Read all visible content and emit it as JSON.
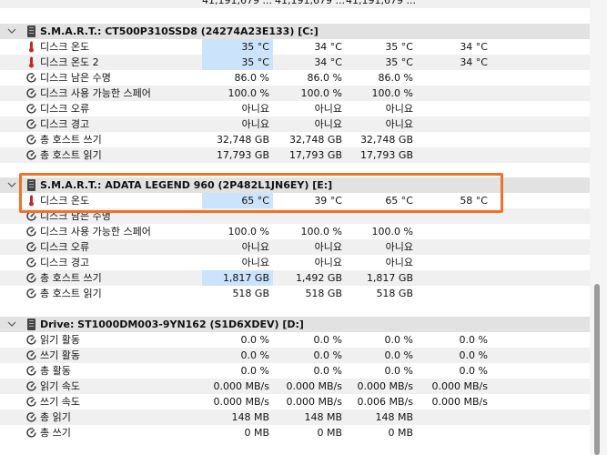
{
  "top_row": {
    "c1": "41,191,679 ...",
    "c2": "41,191,679 ...",
    "c3": "41,191,679 ..."
  },
  "groups": [
    {
      "title": "S.M.A.R.T.: CT500P310SSD8 (24274A23E133) [C:]",
      "rows": [
        {
          "icon": "thermometer-icon",
          "label": "디스크 온도",
          "v": [
            "35 °C",
            "34 °C",
            "35 °C",
            "34 °C"
          ],
          "hl": true
        },
        {
          "icon": "thermometer-icon",
          "label": "디스크 온도 2",
          "v": [
            "35 °C",
            "34 °C",
            "35 °C",
            "34 °C"
          ],
          "hl": true
        },
        {
          "icon": "gauge-icon",
          "label": "디스크 남은 수명",
          "v": [
            "86.0 %",
            "86.0 %",
            "86.0 %",
            ""
          ]
        },
        {
          "icon": "gauge-icon",
          "label": "디스크 사용 가능한 스페어",
          "v": [
            "100.0 %",
            "100.0 %",
            "100.0 %",
            ""
          ]
        },
        {
          "icon": "gauge-icon",
          "label": "디스크 오류",
          "v": [
            "아니요",
            "아니요",
            "아니요",
            ""
          ]
        },
        {
          "icon": "gauge-icon",
          "label": "디스크 경고",
          "v": [
            "아니요",
            "아니요",
            "아니요",
            ""
          ]
        },
        {
          "icon": "gauge-icon",
          "label": "총 호스트 쓰기",
          "v": [
            "32,748 GB",
            "32,748 GB",
            "32,748 GB",
            ""
          ]
        },
        {
          "icon": "gauge-icon",
          "label": "총 호스트 읽기",
          "v": [
            "17,793 GB",
            "17,793 GB",
            "17,793 GB",
            ""
          ]
        }
      ]
    },
    {
      "title": "S.M.A.R.T.: ADATA LEGEND 960 (2P482L1JN6EY) [E:]",
      "rows": [
        {
          "icon": "thermometer-icon",
          "label": "디스크 온도",
          "v": [
            "65 °C",
            "39 °C",
            "65 °C",
            "58 °C"
          ],
          "hl": true
        },
        {
          "icon": "gauge-icon",
          "label": "디스크 남은 수명",
          "v": [
            "",
            "",
            "",
            ""
          ]
        },
        {
          "icon": "gauge-icon",
          "label": "디스크 사용 가능한 스페어",
          "v": [
            "100.0 %",
            "100.0 %",
            "100.0 %",
            ""
          ]
        },
        {
          "icon": "gauge-icon",
          "label": "디스크 오류",
          "v": [
            "아니요",
            "아니요",
            "아니요",
            ""
          ]
        },
        {
          "icon": "gauge-icon",
          "label": "디스크 경고",
          "v": [
            "아니요",
            "아니요",
            "아니요",
            ""
          ]
        },
        {
          "icon": "gauge-icon",
          "label": "총 호스트 쓰기",
          "v": [
            "1,817 GB",
            "1,492 GB",
            "1,817 GB",
            ""
          ],
          "hl": true
        },
        {
          "icon": "gauge-icon",
          "label": "총 호스트 읽기",
          "v": [
            "518 GB",
            "518 GB",
            "518 GB",
            ""
          ]
        }
      ]
    },
    {
      "title": "Drive: ST1000DM003-9YN162 (S1D6XDEV) [D:]",
      "rows": [
        {
          "icon": "gauge-icon",
          "label": "읽기 활동",
          "v": [
            "0.0 %",
            "0.0 %",
            "0.0 %",
            "0.0 %"
          ]
        },
        {
          "icon": "gauge-icon",
          "label": "쓰기 활동",
          "v": [
            "0.0 %",
            "0.0 %",
            "0.0 %",
            "0.0 %"
          ]
        },
        {
          "icon": "gauge-icon",
          "label": "총 활동",
          "v": [
            "0.0 %",
            "0.0 %",
            "0.0 %",
            "0.0 %"
          ]
        },
        {
          "icon": "gauge-icon",
          "label": "읽기 속도",
          "v": [
            "0.000 MB/s",
            "0.000 MB/s",
            "0.000 MB/s",
            "0.000 MB/s"
          ]
        },
        {
          "icon": "gauge-icon",
          "label": "쓰기 속도",
          "v": [
            "0.000 MB/s",
            "0.000 MB/s",
            "0.006 MB/s",
            "0.000 MB/s"
          ]
        },
        {
          "icon": "gauge-icon",
          "label": "총 읽기",
          "v": [
            "148 MB",
            "148 MB",
            "148 MB",
            ""
          ]
        },
        {
          "icon": "gauge-icon",
          "label": "총 쓰기",
          "v": [
            "0 MB",
            "0 MB",
            "0 MB",
            ""
          ]
        }
      ]
    }
  ]
}
